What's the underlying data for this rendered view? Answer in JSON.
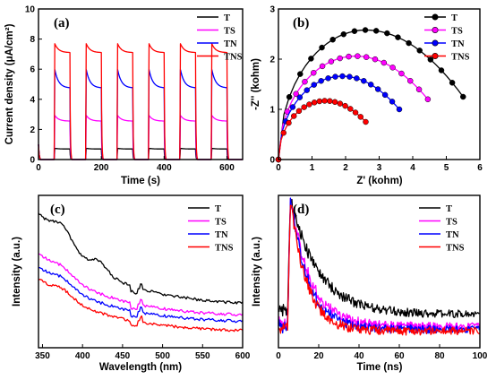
{
  "chart_data": [
    {
      "type": "line",
      "panel_label": "(a)",
      "xlabel": "Time (s)",
      "ylabel": "Current density (μA/cm²)",
      "xlim": [
        0,
        650
      ],
      "ylim": [
        0,
        10
      ],
      "xticks": [
        0,
        200,
        400,
        600
      ],
      "yticks": [
        0,
        2,
        4,
        6,
        8,
        10
      ],
      "legend_position": "top-right",
      "light_on_periods": [
        [
          50,
          100
        ],
        [
          150,
          200
        ],
        [
          250,
          300
        ],
        [
          350,
          400
        ],
        [
          450,
          500
        ],
        [
          550,
          600
        ]
      ],
      "series": [
        {
          "name": "T",
          "color": "#000000",
          "dark": 0.0,
          "spike": 0.75,
          "steady": 0.7
        },
        {
          "name": "TS",
          "color": "#ff00ff",
          "dark": 0.0,
          "spike": 3.0,
          "steady": 2.55
        },
        {
          "name": "TN",
          "color": "#0000ff",
          "dark": 0.0,
          "spike": 6.2,
          "steady": 4.75
        },
        {
          "name": "TNS",
          "color": "#ff0000",
          "dark": 0.0,
          "spike": 7.8,
          "steady": 7.1
        }
      ]
    },
    {
      "type": "scatter",
      "panel_label": "(b)",
      "xlabel": "Z' (kohm)",
      "ylabel": "-Z'' (kohm)",
      "xlim": [
        0,
        6
      ],
      "ylim": [
        0,
        3
      ],
      "xticks": [
        0,
        1,
        2,
        3,
        4,
        5,
        6
      ],
      "yticks": [
        0,
        1,
        2,
        3
      ],
      "legend_position": "top-right",
      "series": [
        {
          "name": "T",
          "color": "#000000",
          "z_end": 5.5,
          "z_peak": 2.6,
          "y_end": 1.25,
          "y_peak": 2.58
        },
        {
          "name": "TS",
          "color": "#ff00ff",
          "z_end": 4.45,
          "z_peak": 2.3,
          "y_end": 1.2,
          "y_peak": 2.06
        },
        {
          "name": "TN",
          "color": "#0000ff",
          "z_end": 3.6,
          "z_peak": 1.9,
          "y_end": 1.0,
          "y_peak": 1.66
        },
        {
          "name": "TNS",
          "color": "#ff0000",
          "z_end": 2.6,
          "z_peak": 1.4,
          "y_end": 0.75,
          "y_peak": 1.17
        }
      ]
    },
    {
      "type": "line",
      "panel_label": "(c)",
      "xlabel": "Wavelength (nm)",
      "ylabel": "Intensity (a.u.)",
      "xlim": [
        345,
        600
      ],
      "xticks": [
        350,
        400,
        450,
        500,
        550,
        600
      ],
      "legend_position": "top-right",
      "series": [
        {
          "name": "T",
          "color": "#000000"
        },
        {
          "name": "TS",
          "color": "#ff00ff"
        },
        {
          "name": "TN",
          "color": "#0000ff"
        },
        {
          "name": "TNS",
          "color": "#ff0000"
        }
      ]
    },
    {
      "type": "line",
      "panel_label": "(d)",
      "xlabel": "Time (ns)",
      "ylabel": "Intensity (a.u.)",
      "xlim": [
        0,
        100
      ],
      "xticks": [
        0,
        20,
        40,
        60,
        80,
        100
      ],
      "legend_position": "top-right",
      "peak_time": 6,
      "series": [
        {
          "name": "T",
          "color": "#000000",
          "baseline": 0.22,
          "tau": 14
        },
        {
          "name": "TS",
          "color": "#ff00ff",
          "baseline": 0.14,
          "tau": 10
        },
        {
          "name": "TN",
          "color": "#0000ff",
          "baseline": 0.12,
          "tau": 9
        },
        {
          "name": "TNS",
          "color": "#ff0000",
          "baseline": 0.11,
          "tau": 8
        }
      ]
    }
  ]
}
